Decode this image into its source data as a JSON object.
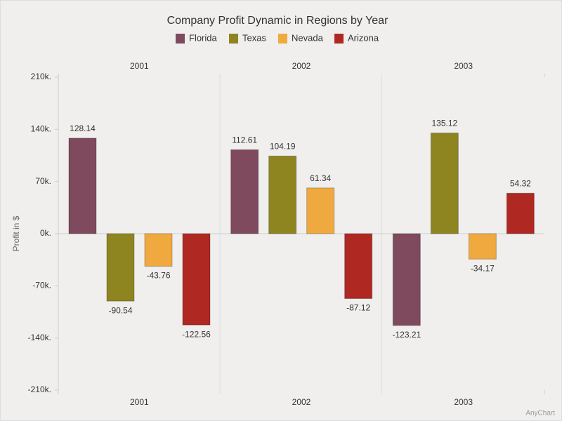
{
  "chart_data": {
    "type": "bar",
    "title": "Company Profit Dynamic in Regions by Year",
    "y_axis_title": "Profit in $",
    "categories": [
      "2001",
      "2002",
      "2003"
    ],
    "series": [
      {
        "name": "Florida",
        "color": "#7f4a5e",
        "values": [
          128.14,
          112.61,
          -123.21
        ]
      },
      {
        "name": "Texas",
        "color": "#8f8520",
        "values": [
          -90.54,
          104.19,
          135.12
        ]
      },
      {
        "name": "Nevada",
        "color": "#f0a93e",
        "values": [
          -43.76,
          61.34,
          -34.17
        ]
      },
      {
        "name": "Arizona",
        "color": "#b02822",
        "values": [
          -122.56,
          -87.12,
          54.32
        ]
      }
    ],
    "ylim": [
      -210,
      210
    ],
    "yticks": [
      {
        "value": -210,
        "label": "-210k."
      },
      {
        "value": -140,
        "label": "-140k."
      },
      {
        "value": -70,
        "label": "-70k."
      },
      {
        "value": 0,
        "label": "0k."
      },
      {
        "value": 70,
        "label": "70k."
      },
      {
        "value": 140,
        "label": "140k."
      },
      {
        "value": 210,
        "label": "210k."
      }
    ],
    "grid": false,
    "legend_position": "top",
    "credits": "AnyChart"
  }
}
